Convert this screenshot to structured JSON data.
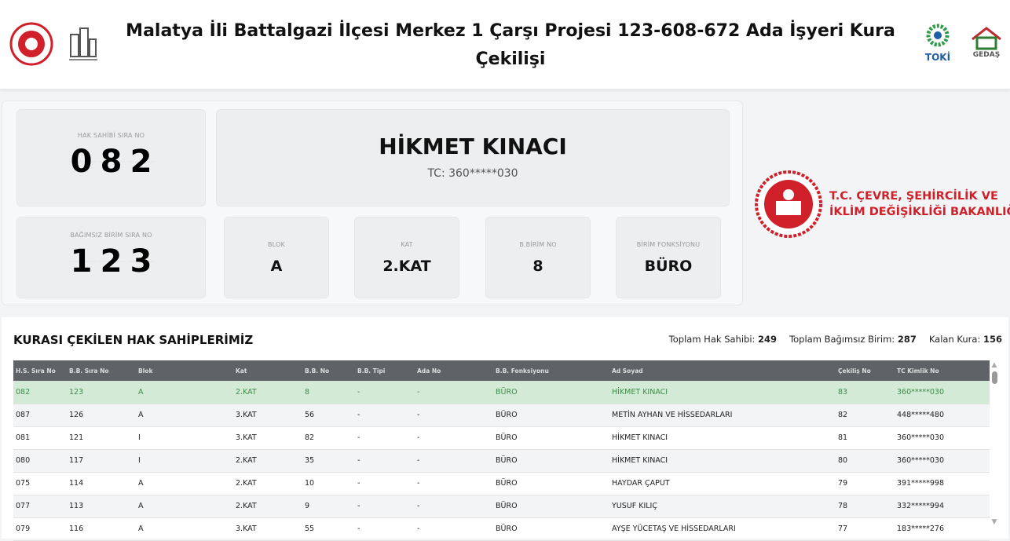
{
  "header": {
    "title": "Malatya İli Battalgazi İlçesi Merkez 1 Çarşı Projesi 123-608-672 Ada İşyeri Kura Çekilişi",
    "logos": [
      "ministry-emblem",
      "building-logo",
      "TOKİ",
      "GEDAŞ"
    ]
  },
  "current": {
    "hak_sahibi_label": "HAK SAHİBİ SIRA NO",
    "hak_sahibi_digits": [
      "0",
      "8",
      "2"
    ],
    "name": "HİKMET KINACI",
    "tc": "TC: 360*****030",
    "bb_label": "BAĞIMSIZ BİRİM SIRA NO",
    "bb_digits": [
      "1",
      "2",
      "3"
    ],
    "details": [
      {
        "label": "BLOK",
        "value": "A"
      },
      {
        "label": "KAT",
        "value": "2.KAT"
      },
      {
        "label": "B.BİRİM NO",
        "value": "8"
      },
      {
        "label": "BİRİM FONKSİYONU",
        "value": "BÜRO"
      }
    ]
  },
  "ministry": {
    "line1": "T.C. ÇEVRE, ŞEHİRCİLİK VE",
    "line2": "İKLİM DEĞİŞİKLİĞİ BAKANLIĞI"
  },
  "table_section": {
    "title": "KURASI ÇEKİLEN HAK SAHİPLERİMİZ",
    "stats": [
      {
        "label": "Toplam Hak Sahibi:",
        "value": "249"
      },
      {
        "label": "Toplam Bağımsız Birim:",
        "value": "287"
      },
      {
        "label": "Kalan Kura:",
        "value": "156"
      }
    ],
    "columns": [
      "H.S. Sıra No",
      "B.B. Sıra No",
      "Blok",
      "Kat",
      "B.B. No",
      "B.B. Tipi",
      "Ada No",
      "B.B. Fonksiyonu",
      "Ad Soyad",
      "Çekiliş No",
      "TC Kimlik No"
    ],
    "rows": [
      [
        "082",
        "123",
        "A",
        "2.KAT",
        "8",
        "-",
        "-",
        "BÜRO",
        "HİKMET KINACI",
        "83",
        "360*****030"
      ],
      [
        "087",
        "126",
        "A",
        "3.KAT",
        "56",
        "-",
        "-",
        "BÜRO",
        "METİN AYHAN VE HİSSEDARLARI",
        "82",
        "448*****480"
      ],
      [
        "081",
        "121",
        "I",
        "3.KAT",
        "82",
        "-",
        "-",
        "BÜRO",
        "HİKMET KINACI",
        "81",
        "360*****030"
      ],
      [
        "080",
        "117",
        "I",
        "2.KAT",
        "35",
        "-",
        "-",
        "BÜRO",
        "HİKMET KINACI",
        "80",
        "360*****030"
      ],
      [
        "075",
        "114",
        "A",
        "2.KAT",
        "10",
        "-",
        "-",
        "BÜRO",
        "HAYDAR ÇAPUT",
        "79",
        "391*****998"
      ],
      [
        "077",
        "113",
        "A",
        "2.KAT",
        "9",
        "-",
        "-",
        "BÜRO",
        "YUSUF KILIÇ",
        "78",
        "332*****994"
      ],
      [
        "079",
        "116",
        "A",
        "3.KAT",
        "55",
        "-",
        "-",
        "BÜRO",
        "AYŞE YÜCETAŞ VE HİSSEDARLARI",
        "77",
        "183*****276"
      ]
    ]
  },
  "colors": {
    "highlight_row": "#d3ebd6",
    "header_bg": "#5f6368",
    "ministry_red": "#d0202a"
  }
}
